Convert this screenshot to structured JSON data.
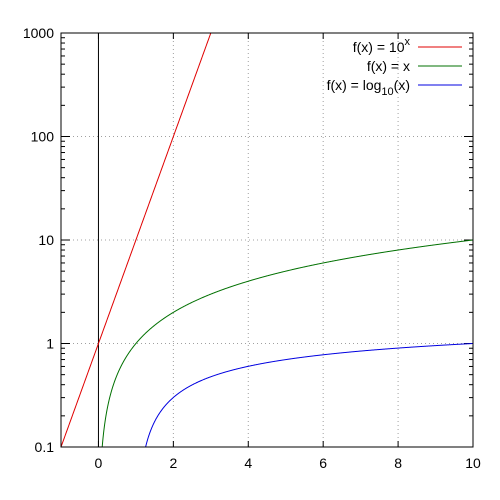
{
  "chart_data": {
    "type": "line",
    "title": "",
    "xlabel": "",
    "ylabel": "",
    "xlim": [
      -1,
      10
    ],
    "ylim": [
      0.1,
      1000
    ],
    "y_scale": "log",
    "grid": true,
    "legend_position": "top-right",
    "x_ticks": [
      "0",
      "2",
      "4",
      "6",
      "8",
      "10"
    ],
    "y_ticks": [
      "0.1",
      "1",
      "10",
      "100",
      "1000"
    ],
    "series": [
      {
        "function": "10^x",
        "legend_prefix": "f(x) = 10",
        "legend_sup": "x",
        "legend_sub": "",
        "legend_suffix": "",
        "color": "#e00000",
        "x": [
          -1,
          0,
          1,
          2,
          3
        ],
        "y": [
          0.1,
          1,
          10,
          100,
          1000
        ]
      },
      {
        "function": "x",
        "legend_prefix": "f(x) = x",
        "legend_sup": "",
        "legend_sub": "",
        "legend_suffix": "",
        "color": "#007000",
        "x": [
          0.1,
          0.5,
          1,
          2,
          4,
          6,
          8,
          10
        ],
        "y": [
          0.1,
          0.5,
          1,
          2,
          4,
          6,
          8,
          10
        ]
      },
      {
        "function": "log10(x)",
        "legend_prefix": "f(x) = log",
        "legend_sup": "",
        "legend_sub": "10",
        "legend_suffix": "(x)",
        "color": "#0000e0",
        "x": [
          1.26,
          2,
          4,
          6,
          8,
          10
        ],
        "y": [
          0.1,
          0.301,
          0.602,
          0.778,
          0.903,
          1
        ]
      }
    ]
  }
}
